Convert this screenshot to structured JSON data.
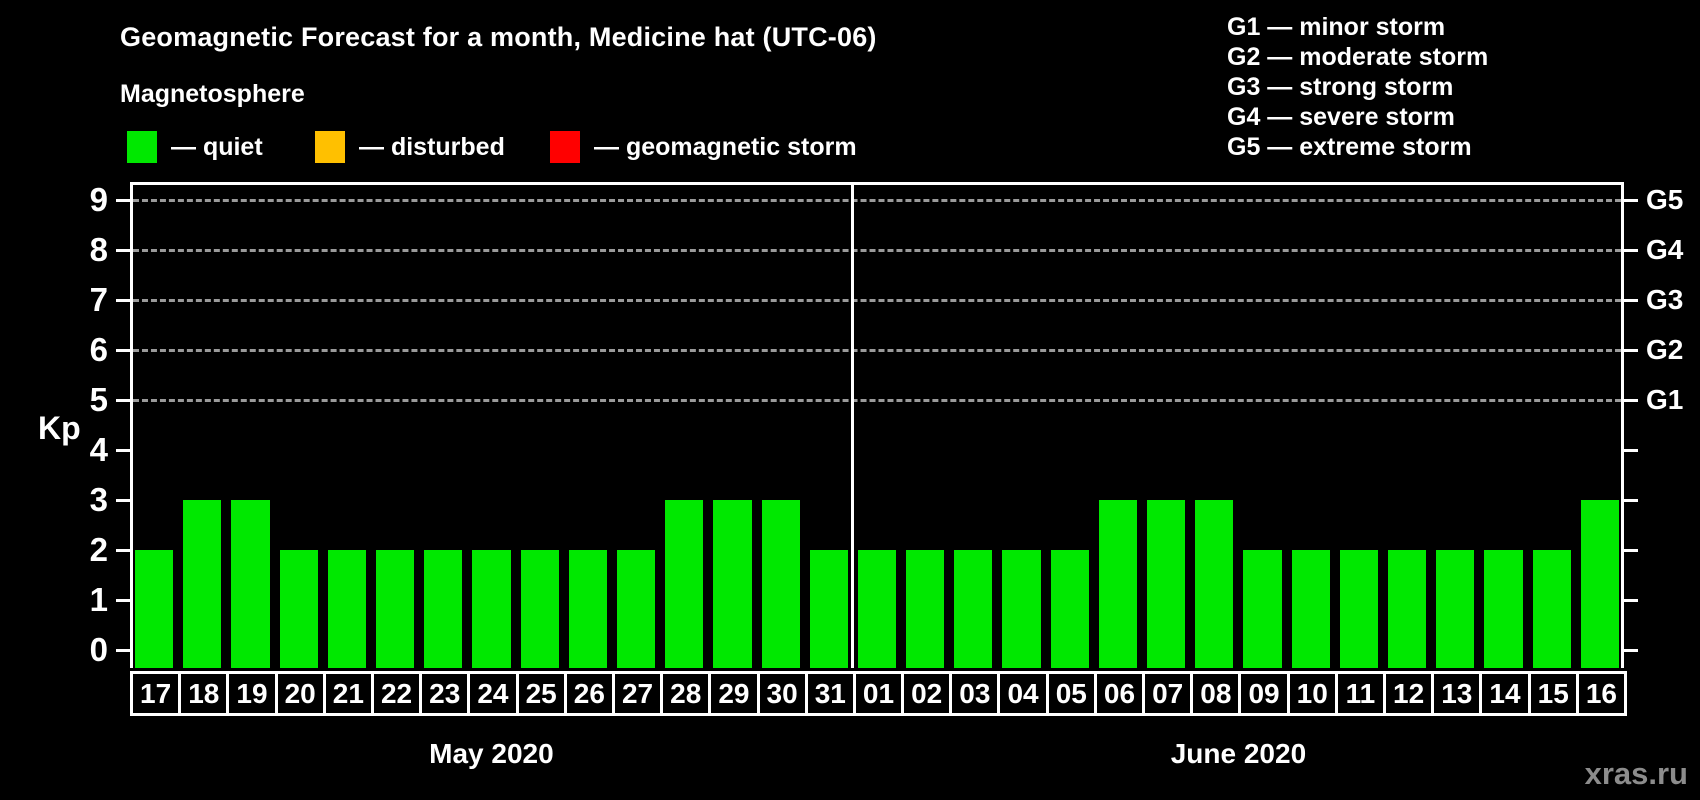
{
  "title": "Geomagnetic Forecast for a month, Medicine hat (UTC-06)",
  "subtitle": "Magnetosphere",
  "legend": {
    "items": [
      {
        "name": "quiet",
        "label": "— quiet",
        "color": "#00e800"
      },
      {
        "name": "disturbed",
        "label": "— disturbed",
        "color": "#ffc000"
      },
      {
        "name": "geomagnetic-storm",
        "label": "— geomagnetic storm",
        "color": "#ff0000"
      }
    ]
  },
  "g_scale_legend": [
    "G1 — minor storm",
    "G2 — moderate storm",
    "G3 — strong storm",
    "G4 — severe storm",
    "G5 — extreme storm"
  ],
  "watermark": "xras.ru",
  "chart_data": {
    "type": "bar",
    "title": "Geomagnetic Forecast for a month, Medicine hat (UTC-06)",
    "ylabel": "Kp",
    "ylim": [
      0,
      9
    ],
    "y_ticks": [
      0,
      1,
      2,
      3,
      4,
      5,
      6,
      7,
      8,
      9
    ],
    "right_axis_labels": {
      "5": "G1",
      "6": "G2",
      "7": "G3",
      "8": "G4",
      "9": "G5"
    },
    "gridlines_at_kp": [
      5,
      6,
      7,
      8,
      9
    ],
    "grid": "horizontal dashed at storm levels only",
    "legend_position": "top-left",
    "bar_color": "#00e800",
    "bar_status": "quiet",
    "months": [
      {
        "label": "May 2020",
        "days": [
          "17",
          "18",
          "19",
          "20",
          "21",
          "22",
          "23",
          "24",
          "25",
          "26",
          "27",
          "28",
          "29",
          "30",
          "31"
        ],
        "values": [
          2,
          3,
          3,
          2,
          2,
          2,
          2,
          2,
          2,
          2,
          2,
          3,
          3,
          3,
          2
        ]
      },
      {
        "label": "June 2020",
        "days": [
          "01",
          "02",
          "03",
          "04",
          "05",
          "06",
          "07",
          "08",
          "09",
          "10",
          "11",
          "12",
          "13",
          "14",
          "15",
          "16"
        ],
        "values": [
          2,
          2,
          2,
          2,
          2,
          3,
          3,
          3,
          2,
          2,
          2,
          2,
          2,
          2,
          2,
          3
        ]
      }
    ]
  }
}
